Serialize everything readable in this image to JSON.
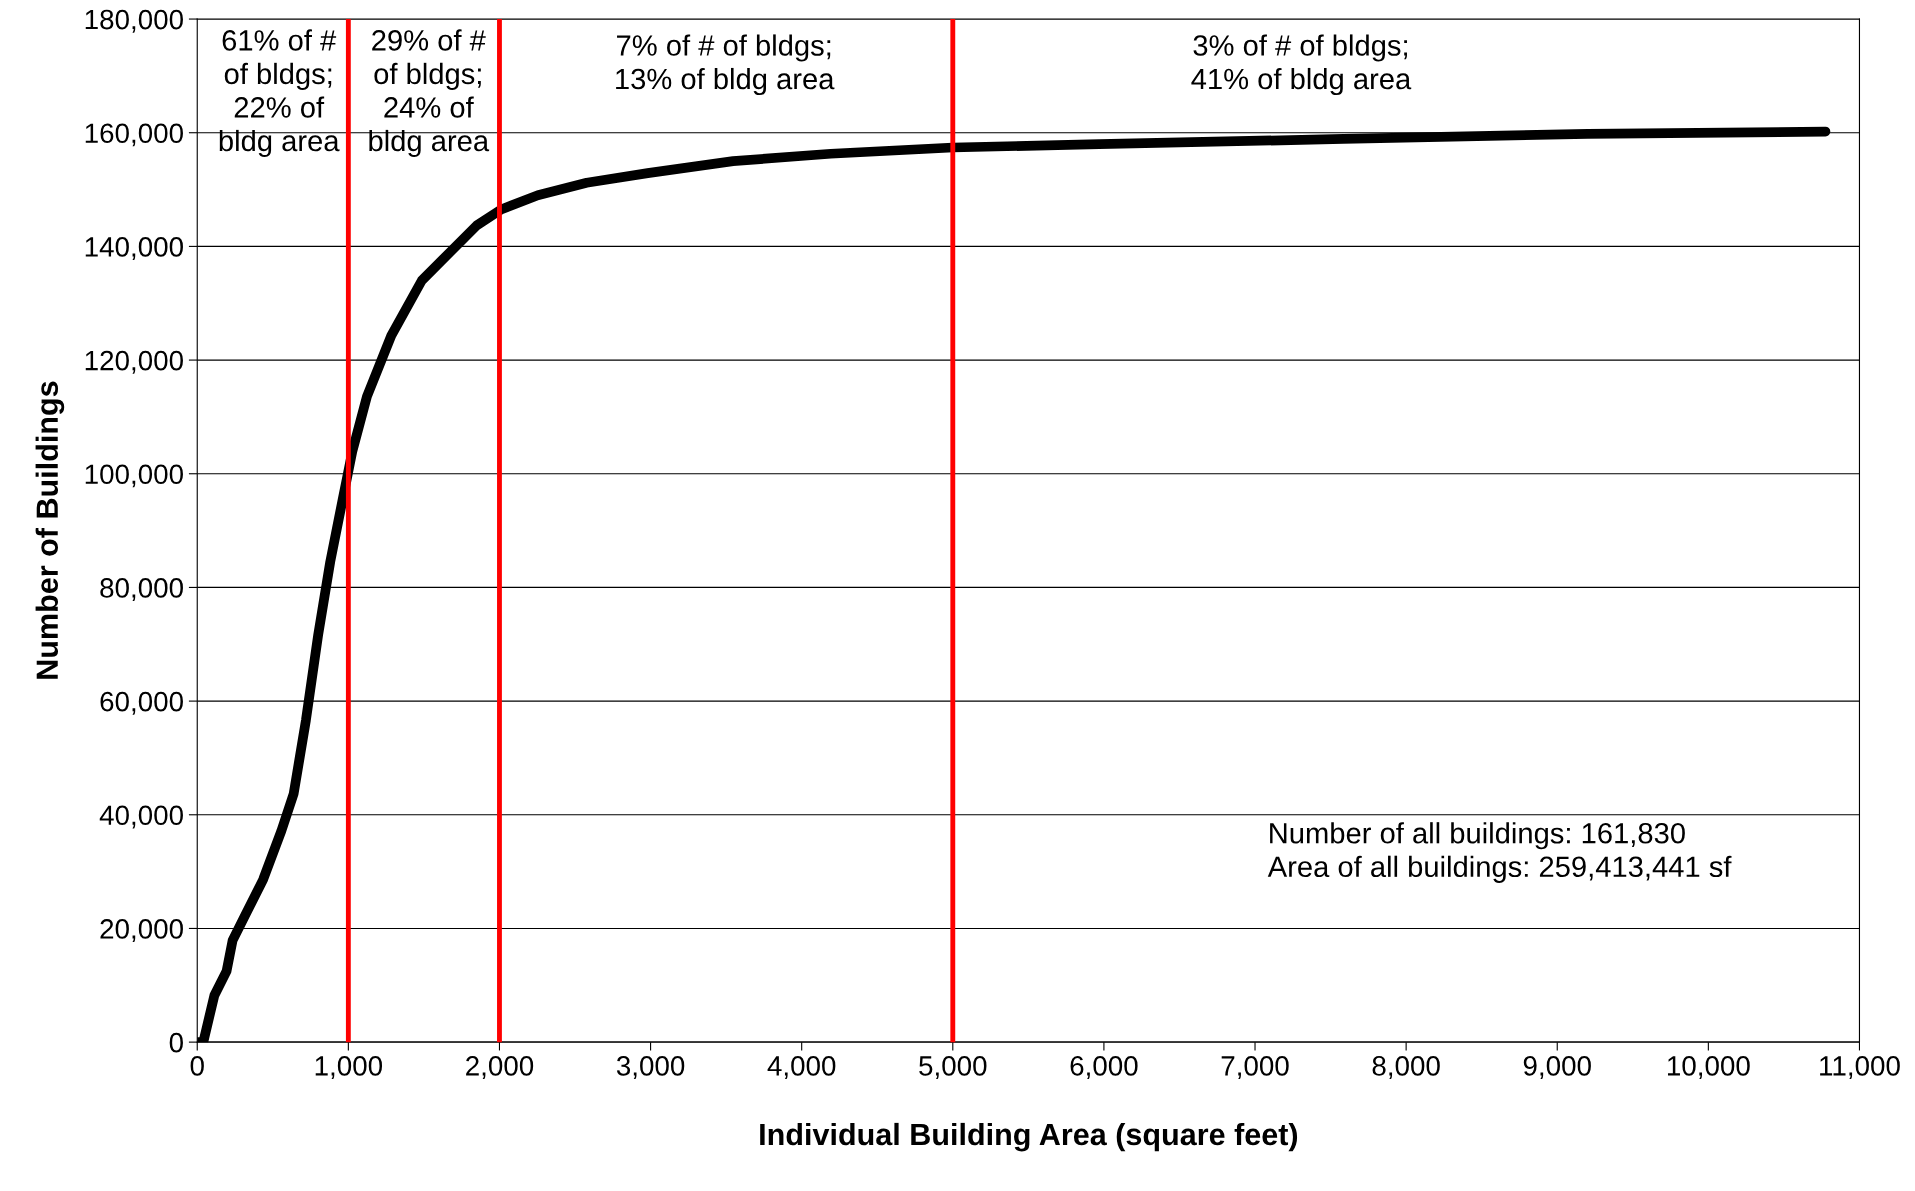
{
  "chart_data": {
    "type": "line",
    "xlabel": "Individual Building Area (square feet)",
    "ylabel": "Number of Buildings",
    "xlim": [
      0,
      11000
    ],
    "xticks": [
      0,
      {
        "value": 1000,
        "label": "1,000"
      },
      {
        "value": 2000,
        "label": "2,000"
      },
      {
        "value": 3000,
        "label": "3,000"
      },
      {
        "value": 4000,
        "label": "4,000"
      },
      {
        "value": 5000,
        "label": "5,000"
      },
      {
        "value": 6000,
        "label": "6,000"
      },
      {
        "value": 7000,
        "label": "7,000"
      },
      {
        "value": 8000,
        "label": "8,000"
      },
      {
        "value": 9000,
        "label": "9,000"
      },
      {
        "value": 10000,
        "label": "10,000"
      },
      {
        "value": 11000,
        "label": "11,000"
      }
    ],
    "ylim": [
      0,
      180000
    ],
    "yticks": [
      0,
      {
        "value": 20000,
        "label": "20,000"
      },
      {
        "value": 40000,
        "label": "40,000"
      },
      {
        "value": 60000,
        "label": "60,000"
      },
      {
        "value": 80000,
        "label": "80,000"
      },
      {
        "value": 100000,
        "label": "100,000"
      },
      {
        "value": 120000,
        "label": "120,000"
      },
      {
        "value": 140000,
        "label": "140,000"
      },
      {
        "value": 160000,
        "label": "160,000"
      },
      {
        "value": 180000,
        "label": "180,000"
      }
    ],
    "grid": "y",
    "legend": false,
    "marker": "none",
    "line_style": "solid",
    "series": [
      {
        "color": "#000000",
        "x": [
          0,
          40,
          113,
          194,
          234,
          315,
          436,
          557,
          638,
          719,
          800,
          880,
          961,
          1026,
          1123,
          1284,
          1486,
          1688,
          1850,
          2011,
          2254,
          2577,
          2981,
          3546,
          4192,
          5000,
          5969,
          7585,
          9200,
          10775
        ],
        "values": [
          0,
          0,
          8200,
          12500,
          17900,
          22200,
          28600,
          37200,
          43700,
          56600,
          71600,
          84500,
          95300,
          103900,
          113600,
          124300,
          134000,
          139400,
          143700,
          146500,
          149000,
          151200,
          152900,
          155000,
          156300,
          157400,
          158000,
          158900,
          159800,
          160200
        ]
      }
    ],
    "ref_lines": [
      {
        "axis": "x",
        "value": 1000,
        "color": "#ff0000"
      },
      {
        "axis": "x",
        "value": 2000,
        "color": "#ff0000"
      },
      {
        "axis": "x",
        "value": 5000,
        "color": "#ff0000"
      }
    ],
    "annotations": [
      "61% of #\nof bldgs;\n22% of\nbldg area",
      "29% of #\nof bldgs;\n24% of\nbldg area",
      "7% of # of bldgs;\n13% of bldg area",
      "3% of # of bldgs;\n41% of bldg area",
      "Number of all buildings: 161,830\nArea of all buildings: 259,413,441 sf"
    ]
  }
}
